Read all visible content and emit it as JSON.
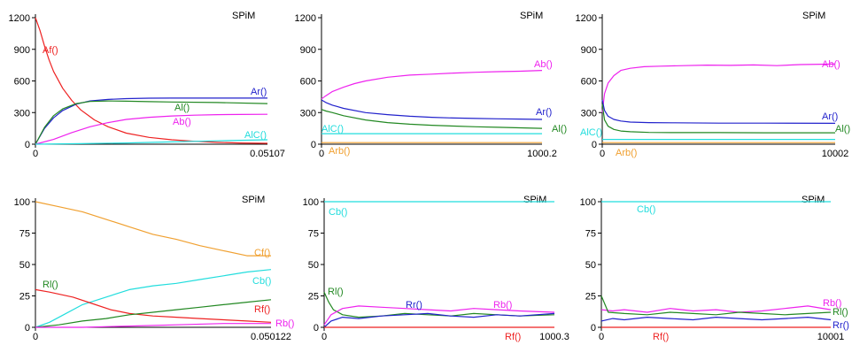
{
  "chart_data": [
    {
      "type": "line",
      "watermark": "SPiM",
      "x_tick_labels": [
        "0",
        "0.05107"
      ],
      "y_ticks": [
        0,
        300,
        600,
        900,
        1200
      ],
      "xlim": [
        0,
        0.05107
      ],
      "ylim": [
        0,
        1200
      ],
      "series": [
        {
          "name": "Af()",
          "color": "#ee2222",
          "x": [
            0,
            0.001,
            0.002,
            0.003,
            0.004,
            0.006,
            0.008,
            0.01,
            0.013,
            0.016,
            0.02,
            0.025,
            0.03,
            0.035,
            0.04,
            0.045,
            0.05107
          ],
          "values": [
            1200,
            1080,
            930,
            800,
            690,
            530,
            415,
            325,
            230,
            165,
            105,
            65,
            42,
            28,
            18,
            12,
            8
          ]
        },
        {
          "name": "Ar()",
          "color": "#2222cc",
          "x": [
            0,
            0.002,
            0.004,
            0.006,
            0.009,
            0.012,
            0.016,
            0.02,
            0.025,
            0.03,
            0.04,
            0.05107
          ],
          "values": [
            0,
            150,
            250,
            320,
            380,
            410,
            425,
            432,
            436,
            437,
            437,
            437
          ]
        },
        {
          "name": "Al()",
          "color": "#228822",
          "x": [
            0,
            0.002,
            0.004,
            0.006,
            0.009,
            0.012,
            0.016,
            0.02,
            0.025,
            0.03,
            0.04,
            0.05107
          ],
          "values": [
            0,
            160,
            270,
            335,
            385,
            405,
            410,
            408,
            404,
            400,
            395,
            385
          ]
        },
        {
          "name": "Ab()",
          "color": "#ee22ee",
          "x": [
            0,
            0.004,
            0.008,
            0.012,
            0.016,
            0.02,
            0.025,
            0.03,
            0.035,
            0.04,
            0.045,
            0.05107
          ],
          "values": [
            0,
            45,
            110,
            165,
            205,
            235,
            255,
            268,
            275,
            280,
            282,
            284
          ]
        },
        {
          "name": "AlC()",
          "color": "#22dddd",
          "x": [
            0,
            0.01,
            0.02,
            0.03,
            0.04,
            0.05107
          ],
          "values": [
            0,
            5,
            12,
            22,
            32,
            42
          ]
        }
      ]
    },
    {
      "type": "line",
      "watermark": "SPiM",
      "x_tick_labels": [
        "0",
        "1000.2"
      ],
      "y_ticks": [
        0,
        300,
        600,
        900,
        1200
      ],
      "xlim": [
        0,
        1000.2
      ],
      "ylim": [
        0,
        1200
      ],
      "series": [
        {
          "name": "Ab()",
          "color": "#ee22ee",
          "x": [
            0,
            20,
            50,
            100,
            150,
            200,
            300,
            400,
            500,
            600,
            700,
            800,
            900,
            1000.2
          ],
          "values": [
            430,
            460,
            500,
            540,
            575,
            600,
            635,
            655,
            665,
            675,
            682,
            688,
            692,
            700
          ]
        },
        {
          "name": "Ar()",
          "color": "#2222cc",
          "x": [
            0,
            20,
            50,
            100,
            200,
            300,
            400,
            500,
            600,
            700,
            800,
            900,
            1000.2
          ],
          "values": [
            420,
            395,
            370,
            340,
            300,
            280,
            265,
            255,
            248,
            244,
            241,
            238,
            235
          ]
        },
        {
          "name": "Al()",
          "color": "#228822",
          "x": [
            0,
            20,
            50,
            100,
            200,
            300,
            400,
            500,
            600,
            700,
            800,
            900,
            1000.2
          ],
          "values": [
            330,
            315,
            300,
            270,
            230,
            205,
            190,
            180,
            172,
            165,
            160,
            155,
            150
          ]
        },
        {
          "name": "AlC()",
          "color": "#22dddd",
          "x": [
            0,
            1000.2
          ],
          "values": [
            100,
            100
          ]
        },
        {
          "name": "Arb()",
          "color": "#f0a030",
          "x": [
            0,
            1000.2
          ],
          "values": [
            15,
            15
          ]
        }
      ]
    },
    {
      "type": "line",
      "watermark": "SPiM",
      "x_tick_labels": [
        "0",
        "10002"
      ],
      "y_ticks": [
        0,
        300,
        600,
        900,
        1200
      ],
      "xlim": [
        0,
        10002
      ],
      "ylim": [
        0,
        1200
      ],
      "series": [
        {
          "name": "Ab()",
          "color": "#ee22ee",
          "x": [
            0,
            100,
            250,
            500,
            800,
            1200,
            1800,
            2500,
            3500,
            4500,
            5500,
            6500,
            7500,
            8500,
            10002
          ],
          "values": [
            300,
            480,
            580,
            650,
            700,
            720,
            735,
            740,
            745,
            750,
            748,
            752,
            745,
            755,
            760
          ]
        },
        {
          "name": "Ar()",
          "color": "#2222cc",
          "x": [
            0,
            100,
            250,
            500,
            800,
            1200,
            2000,
            3000,
            5000,
            7000,
            10002
          ],
          "values": [
            420,
            320,
            265,
            235,
            220,
            210,
            205,
            203,
            200,
            200,
            198
          ]
        },
        {
          "name": "Al()",
          "color": "#228822",
          "x": [
            0,
            100,
            250,
            500,
            800,
            1200,
            2000,
            3000,
            5000,
            7000,
            10002
          ],
          "values": [
            380,
            230,
            170,
            140,
            125,
            118,
            112,
            110,
            110,
            108,
            108
          ]
        },
        {
          "name": "AlC()",
          "color": "#22dddd",
          "x": [
            0,
            10002
          ],
          "values": [
            45,
            45
          ]
        },
        {
          "name": "Arb()",
          "color": "#f0a030",
          "x": [
            0,
            10002
          ],
          "values": [
            15,
            15
          ]
        }
      ]
    },
    {
      "type": "line",
      "watermark": "SPiM",
      "x_tick_labels": [
        "0",
        "0.050122"
      ],
      "y_ticks": [
        0,
        25,
        50,
        75,
        100
      ],
      "xlim": [
        0,
        0.050122
      ],
      "ylim": [
        0,
        100
      ],
      "series": [
        {
          "name": "Cf()",
          "color": "#f0a030",
          "x": [
            0,
            0.005,
            0.01,
            0.015,
            0.02,
            0.025,
            0.03,
            0.035,
            0.04,
            0.045,
            0.050122
          ],
          "values": [
            100,
            96,
            92,
            86,
            80,
            74,
            70,
            65,
            61,
            57,
            57
          ]
        },
        {
          "name": "Cb()",
          "color": "#22dddd",
          "x": [
            0,
            0.003,
            0.006,
            0.01,
            0.015,
            0.02,
            0.025,
            0.03,
            0.035,
            0.04,
            0.045,
            0.050122
          ],
          "values": [
            0,
            4,
            10,
            18,
            24,
            30,
            33,
            35,
            38,
            41,
            44,
            46
          ]
        },
        {
          "name": "Rf()",
          "color": "#ee2222",
          "x": [
            0,
            0.003,
            0.008,
            0.012,
            0.016,
            0.02,
            0.025,
            0.03,
            0.035,
            0.04,
            0.045,
            0.050122
          ],
          "values": [
            30,
            28,
            24,
            19,
            14,
            11,
            9,
            8,
            7,
            6,
            5,
            4
          ]
        },
        {
          "name": "Rl()",
          "color": "#228822",
          "x": [
            0,
            0.005,
            0.01,
            0.015,
            0.02,
            0.025,
            0.03,
            0.035,
            0.04,
            0.045,
            0.050122
          ],
          "values": [
            0,
            2,
            5,
            7,
            10,
            12,
            14,
            16,
            18,
            20,
            22
          ]
        },
        {
          "name": "Rb()",
          "color": "#ee22ee",
          "x": [
            0,
            0.01,
            0.02,
            0.03,
            0.04,
            0.050122
          ],
          "values": [
            0,
            0,
            1,
            2,
            3,
            3
          ]
        }
      ]
    },
    {
      "type": "line",
      "watermark": "SPiM",
      "x_tick_labels": [
        "0",
        "1000.3"
      ],
      "y_ticks": [
        0,
        25,
        50,
        75,
        100
      ],
      "xlim": [
        0,
        1000.3
      ],
      "ylim": [
        0,
        100
      ],
      "series": [
        {
          "name": "Cb()",
          "color": "#22dddd",
          "x": [
            0,
            1000.3
          ],
          "values": [
            100,
            100
          ]
        },
        {
          "name": "Rl()",
          "color": "#228822",
          "x": [
            0,
            20,
            40,
            80,
            150,
            250,
            350,
            450,
            550,
            650,
            750,
            850,
            1000.3
          ],
          "values": [
            28,
            20,
            14,
            10,
            8,
            9,
            11,
            10,
            9,
            11,
            10,
            9,
            10
          ]
        },
        {
          "name": "Rb()",
          "color": "#ee22ee",
          "x": [
            0,
            30,
            80,
            150,
            250,
            350,
            450,
            550,
            650,
            750,
            850,
            1000.3
          ],
          "values": [
            2,
            10,
            15,
            17,
            16,
            15,
            14,
            13,
            15,
            14,
            13,
            12
          ]
        },
        {
          "name": "Rr()",
          "color": "#2222cc",
          "x": [
            0,
            30,
            80,
            150,
            250,
            350,
            450,
            550,
            650,
            750,
            850,
            1000.3
          ],
          "values": [
            0,
            5,
            8,
            7,
            9,
            10,
            11,
            9,
            8,
            10,
            9,
            11
          ]
        },
        {
          "name": "Rf()",
          "color": "#ee2222",
          "x": [
            0,
            1000.3
          ],
          "values": [
            0,
            0
          ]
        }
      ]
    },
    {
      "type": "line",
      "watermark": "SPiM",
      "x_tick_labels": [
        "0",
        "10001"
      ],
      "y_ticks": [
        0,
        25,
        50,
        75,
        100
      ],
      "xlim": [
        0,
        10001
      ],
      "ylim": [
        0,
        100
      ],
      "series": [
        {
          "name": "Cb()",
          "color": "#22dddd",
          "x": [
            0,
            10001
          ],
          "values": [
            100,
            100
          ]
        },
        {
          "name": "Rb()",
          "color": "#ee22ee",
          "x": [
            0,
            500,
            1000,
            2000,
            3000,
            4000,
            5000,
            6000,
            7000,
            8000,
            9000,
            10001
          ],
          "values": [
            14,
            13,
            14,
            12,
            15,
            13,
            14,
            12,
            13,
            15,
            17,
            14
          ]
        },
        {
          "name": "Rl()",
          "color": "#228822",
          "x": [
            0,
            300,
            1000,
            2000,
            3000,
            4000,
            5000,
            6000,
            7000,
            8000,
            9000,
            10001
          ],
          "values": [
            25,
            12,
            11,
            10,
            12,
            11,
            10,
            12,
            11,
            10,
            11,
            12
          ]
        },
        {
          "name": "Rr()",
          "color": "#2222cc",
          "x": [
            0,
            500,
            1000,
            2000,
            3000,
            4000,
            5000,
            6000,
            7000,
            8000,
            9000,
            10001
          ],
          "values": [
            5,
            7,
            6,
            8,
            7,
            6,
            8,
            7,
            6,
            7,
            8,
            6
          ]
        },
        {
          "name": "Rf()",
          "color": "#ee2222",
          "x": [
            0,
            10001
          ],
          "values": [
            0,
            0
          ]
        }
      ]
    }
  ]
}
